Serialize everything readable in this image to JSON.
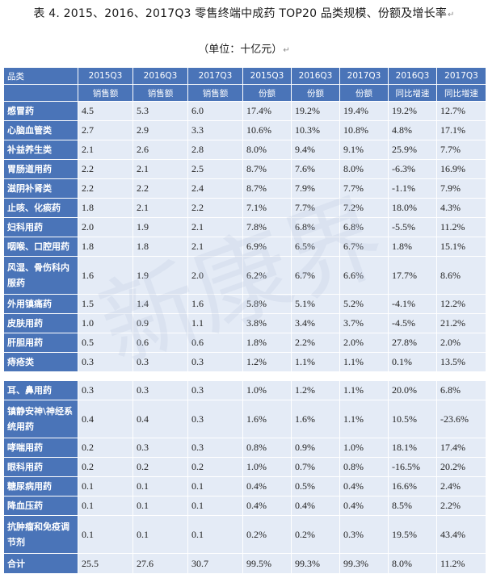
{
  "title": "表 4. 2015、2016、2017Q3 零售终端中成药 TOP20 品类规模、份额及增长率",
  "subtitle": "（单位：十亿元）",
  "para_mark": "↵",
  "watermark_text": "新康界",
  "header_row1": [
    "品类",
    "2015Q3",
    "2016Q3",
    "2017Q3",
    "2015Q3",
    "2016Q3",
    "2017Q3",
    "2016Q3",
    "2017Q3"
  ],
  "header_row2": [
    "",
    "销售额",
    "销售额",
    "销售额",
    "份额",
    "份额",
    "份额",
    "同比增速",
    "同比增速"
  ],
  "group1": [
    {
      "name": "感冒药",
      "v": [
        "4.5",
        "5.3",
        "6.0",
        "17.4%",
        "19.2%",
        "19.4%",
        "19.2%",
        "12.7%"
      ]
    },
    {
      "name": "心脑血管类",
      "v": [
        "2.7",
        "2.9",
        "3.3",
        "10.6%",
        "10.3%",
        "10.8%",
        "4.8%",
        "17.1%"
      ]
    },
    {
      "name": "补益养生类",
      "v": [
        "2.1",
        "2.6",
        "2.8",
        "8.0%",
        "9.4%",
        "9.1%",
        "25.9%",
        "7.7%"
      ]
    },
    {
      "name": "胃肠道用药",
      "v": [
        "2.2",
        "2.1",
        "2.5",
        "8.7%",
        "7.6%",
        "8.0%",
        "-6.3%",
        "16.9%"
      ]
    },
    {
      "name": "滋阴补肾类",
      "v": [
        "2.2",
        "2.2",
        "2.4",
        "8.7%",
        "7.9%",
        "7.7%",
        "-1.1%",
        "7.9%"
      ]
    },
    {
      "name": "止咳、化痰药",
      "v": [
        "1.8",
        "2.1",
        "2.2",
        "7.1%",
        "7.7%",
        "7.2%",
        "18.0%",
        "4.3%"
      ]
    },
    {
      "name": "妇科用药",
      "v": [
        "2.0",
        "1.9",
        "2.1",
        "7.8%",
        "6.8%",
        "6.8%",
        "-5.5%",
        "11.2%"
      ]
    },
    {
      "name": "咽喉、口腔用药",
      "v": [
        "1.8",
        "1.8",
        "2.1",
        "6.9%",
        "6.5%",
        "6.7%",
        "1.8%",
        "15.1%"
      ]
    },
    {
      "name": "风湿、骨伤科内服药",
      "v": [
        "1.6",
        "1.9",
        "2.0",
        "6.2%",
        "6.7%",
        "6.6%",
        "17.7%",
        "8.6%"
      ],
      "tall": true
    },
    {
      "name": "外用镇痛药",
      "v": [
        "1.5",
        "1.4",
        "1.6",
        "5.8%",
        "5.1%",
        "5.2%",
        "-4.1%",
        "12.2%"
      ]
    },
    {
      "name": "皮肤用药",
      "v": [
        "1.0",
        "0.9",
        "1.1",
        "3.8%",
        "3.4%",
        "3.7%",
        "-4.5%",
        "21.2%"
      ]
    },
    {
      "name": "肝胆用药",
      "v": [
        "0.5",
        "0.6",
        "0.6",
        "1.8%",
        "2.2%",
        "2.0%",
        "27.8%",
        "2.0%"
      ]
    },
    {
      "name": "痔疮类",
      "v": [
        "0.3",
        "0.3",
        "0.3",
        "1.2%",
        "1.1%",
        "1.1%",
        "0.1%",
        "13.5%"
      ]
    }
  ],
  "group2": [
    {
      "name": "耳、鼻用药",
      "v": [
        "0.3",
        "0.3",
        "0.3",
        "1.0%",
        "1.2%",
        "1.1%",
        "20.0%",
        "6.8%"
      ]
    },
    {
      "name": "镇静安神\\神经系统用药",
      "v": [
        "0.4",
        "0.4",
        "0.3",
        "1.6%",
        "1.6%",
        "1.1%",
        "10.5%",
        "-23.6%"
      ],
      "tall": true
    },
    {
      "name": "哮喘用药",
      "v": [
        "0.2",
        "0.3",
        "0.3",
        "0.8%",
        "0.9%",
        "1.0%",
        "18.1%",
        "17.4%"
      ]
    },
    {
      "name": "眼科用药",
      "v": [
        "0.2",
        "0.2",
        "0.2",
        "1.0%",
        "0.7%",
        "0.8%",
        "-16.5%",
        "20.2%"
      ]
    },
    {
      "name": "糖尿病用药",
      "v": [
        "0.1",
        "0.1",
        "0.1",
        "0.4%",
        "0.5%",
        "0.4%",
        "16.6%",
        "2.4%"
      ]
    },
    {
      "name": "降血压药",
      "v": [
        "0.1",
        "0.1",
        "0.1",
        "0.4%",
        "0.4%",
        "0.4%",
        "8.5%",
        "2.2%"
      ]
    },
    {
      "name": "抗肿瘤和免疫调节剂",
      "v": [
        "0.1",
        "0.1",
        "0.1",
        "0.2%",
        "0.2%",
        "0.3%",
        "19.5%",
        "43.4%"
      ],
      "tall": true
    }
  ],
  "total": {
    "name": "合计",
    "v": [
      "25.5",
      "27.6",
      "30.7",
      "99.5%",
      "99.3%",
      "99.3%",
      "8.0%",
      "11.2%"
    ]
  }
}
